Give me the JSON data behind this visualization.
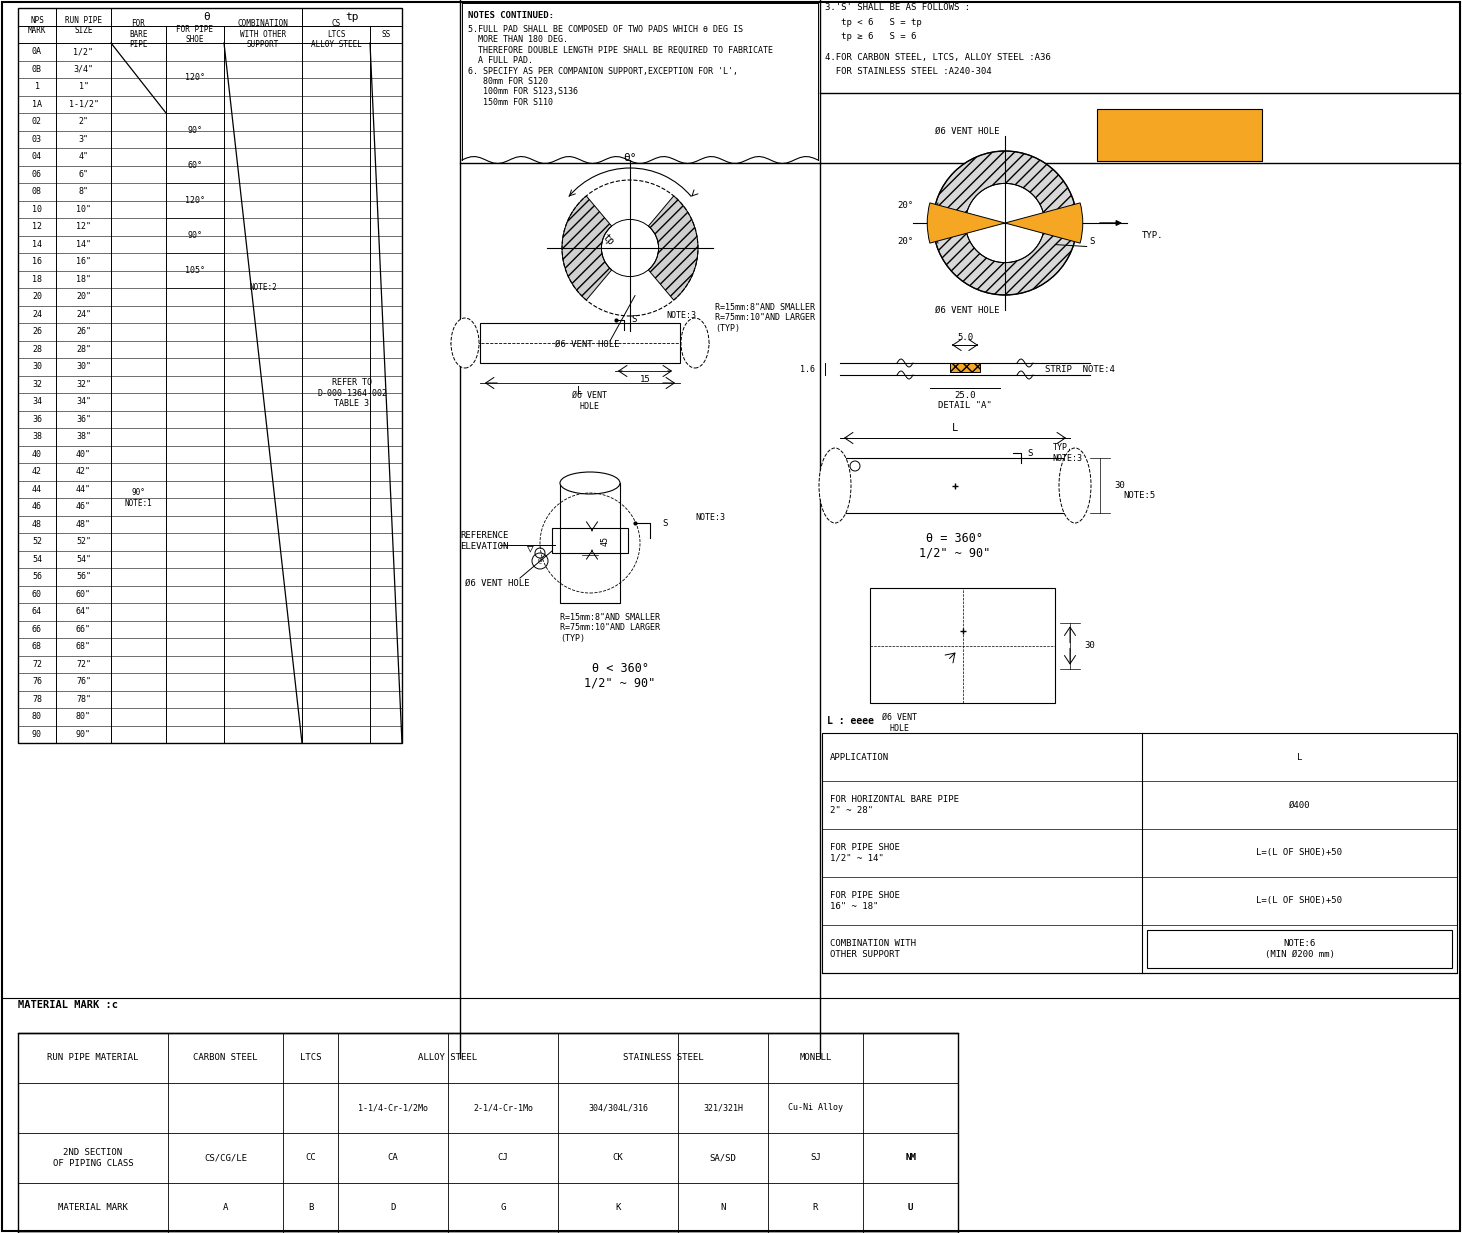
{
  "bg": "#ffffff",
  "nps_rows": [
    [
      "0A",
      "1/2\""
    ],
    [
      "0B",
      "3/4\""
    ],
    [
      "1",
      "1\""
    ],
    [
      "1A",
      "1-1/2\""
    ],
    [
      "02",
      "2\""
    ],
    [
      "03",
      "3\""
    ],
    [
      "04",
      "4\""
    ],
    [
      "06",
      "6\""
    ],
    [
      "08",
      "8\""
    ],
    [
      "10",
      "10\""
    ],
    [
      "12",
      "12\""
    ],
    [
      "14",
      "14\""
    ],
    [
      "16",
      "16\""
    ],
    [
      "18",
      "18\""
    ],
    [
      "20",
      "20\""
    ],
    [
      "24",
      "24\""
    ],
    [
      "26",
      "26\""
    ],
    [
      "28",
      "28\""
    ],
    [
      "30",
      "30\""
    ],
    [
      "32",
      "32\""
    ],
    [
      "34",
      "34\""
    ],
    [
      "36",
      "36\""
    ],
    [
      "38",
      "38\""
    ],
    [
      "40",
      "40\""
    ],
    [
      "42",
      "42\""
    ],
    [
      "44",
      "44\""
    ],
    [
      "46",
      "46\""
    ],
    [
      "48",
      "48\""
    ],
    [
      "52",
      "52\""
    ],
    [
      "54",
      "54\""
    ],
    [
      "56",
      "56\""
    ],
    [
      "60",
      "60\""
    ],
    [
      "64",
      "64\""
    ],
    [
      "66",
      "66\""
    ],
    [
      "68",
      "68\""
    ],
    [
      "72",
      "72\""
    ],
    [
      "76",
      "76\""
    ],
    [
      "78",
      "78\""
    ],
    [
      "80",
      "80\""
    ],
    [
      "90",
      "90\""
    ]
  ],
  "refer_text": "REFER TO\nD-000-1364-002\nTABLE 3",
  "backup_color": "#F5A623",
  "L_rows": [
    [
      "APPLICATION",
      "L"
    ],
    [
      "FOR HORIZONTAL BARE PIPE\n2\" ~ 28\"",
      "Ø400"
    ],
    [
      "FOR PIPE SHOE\n1/2\" ~ 14\"",
      "L=(L OF SHOE)+50"
    ],
    [
      "FOR PIPE SHOE\n16\" ~ 18\"",
      "L=(L OF SHOE)+50"
    ],
    [
      "COMBINATION WITH\nOTHER SUPPORT",
      "NOTE:6\n(MIN Ø200 mm)"
    ]
  ],
  "mat_col_headers": [
    "RUN PIPE MATERIAL",
    "CARBON STEEL",
    "LTCS",
    "ALLOY STEEL",
    "",
    "STAINLESS STEEL",
    "",
    "MONELL"
  ],
  "mat_sub_headers": [
    "",
    "",
    "",
    "1-1/4-Cr-1/2Mo",
    "2-1/4-Cr-1Mo",
    "304/304L/316",
    "321/321H",
    "Cu-Ni Alloy"
  ],
  "mat_row2": [
    "2ND SECTION\nOF PIPING CLASS",
    "CS/CG/LE",
    "CC",
    "CA",
    "CJ",
    "CK",
    "SA/SD",
    "SJ",
    "NM"
  ],
  "mat_row3": [
    "MATERIAL MARK",
    "A",
    "B",
    "D",
    "G",
    "K",
    "N",
    "R",
    "U"
  ]
}
